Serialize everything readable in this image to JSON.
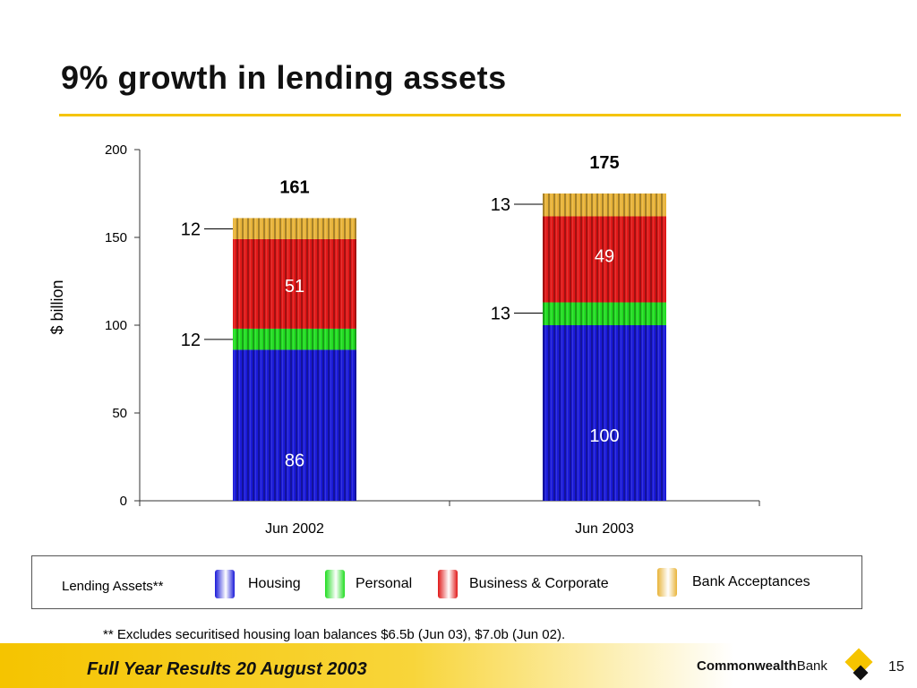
{
  "title": "9% growth in lending assets",
  "chart_data": {
    "type": "bar",
    "stacked": true,
    "ylabel": "$ billion",
    "ylim": [
      0,
      200
    ],
    "yticks": [
      "0",
      "50",
      "100",
      "150",
      "200"
    ],
    "categories": [
      "Jun 2002",
      "Jun 2003"
    ],
    "totals": [
      "161",
      "175"
    ],
    "series": [
      {
        "name": "Housing",
        "values": [
          86,
          100
        ],
        "labels": [
          "86",
          "100"
        ],
        "color": "#1a1ad8"
      },
      {
        "name": "Personal",
        "values": [
          12,
          13
        ],
        "labels": [
          "12",
          "13"
        ],
        "color": "#22dd22"
      },
      {
        "name": "Business & Corporate",
        "values": [
          51,
          49
        ],
        "labels": [
          "51",
          "49"
        ],
        "color": "#e01818"
      },
      {
        "name": "Bank Acceptances",
        "values": [
          12,
          13
        ],
        "labels": [
          "12",
          "13"
        ],
        "color": "#e8b43a"
      }
    ],
    "legend_title": "Lending Assets**"
  },
  "footnote": "** Excludes securitised housing loan balances  $6.5b (Jun 03), $7.0b (Jun 02).",
  "footer": {
    "event": "Full Year Results 20 August 2003",
    "brand_bold": "Commonwealth",
    "brand_light": "Bank",
    "page": "15"
  }
}
